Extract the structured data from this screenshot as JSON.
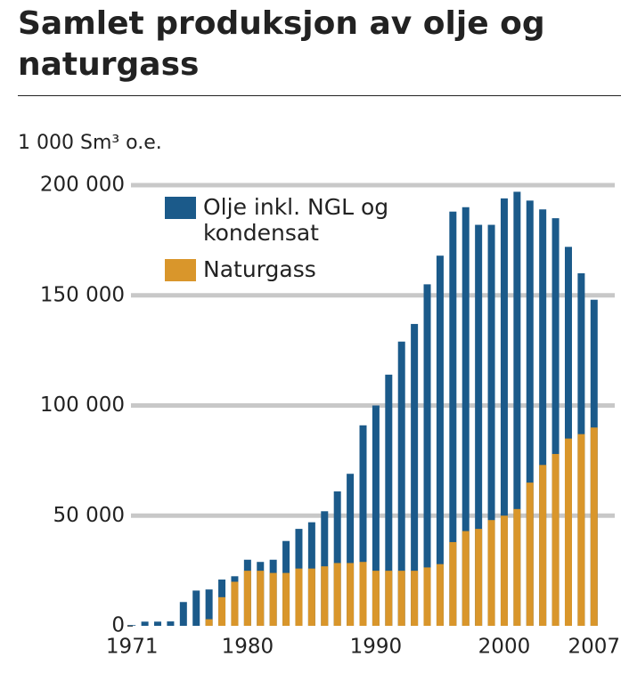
{
  "chart_data": {
    "type": "bar",
    "title": "Samlet produksjon av olje og naturgass",
    "y_axis_label": "1 000 Sm³ o.e.",
    "x": [
      1971,
      1972,
      1973,
      1974,
      1975,
      1976,
      1977,
      1978,
      1979,
      1980,
      1981,
      1982,
      1983,
      1984,
      1985,
      1986,
      1987,
      1988,
      1989,
      1990,
      1991,
      1992,
      1993,
      1994,
      1995,
      1996,
      1997,
      1998,
      1999,
      2000,
      2001,
      2002,
      2003,
      2004,
      2005,
      2006,
      2007
    ],
    "series": [
      {
        "name": "Olje inkl. NGL og kondensat",
        "color": "#1b5a8a",
        "values": [
          300,
          1900,
          1900,
          2000,
          10800,
          16000,
          16500,
          21000,
          22500,
          30000,
          29000,
          30000,
          38500,
          44000,
          47000,
          52000,
          61000,
          69000,
          91000,
          100000,
          114000,
          129000,
          137000,
          155000,
          168000,
          188000,
          190000,
          182000,
          182000,
          194000,
          197000,
          193000,
          189000,
          185000,
          172000,
          160000,
          148000
        ]
      },
      {
        "name": "Naturgass",
        "color": "#d9962b",
        "values": [
          0,
          0,
          0,
          0,
          0,
          0,
          3000,
          13000,
          20000,
          25000,
          25000,
          24000,
          24000,
          26000,
          26000,
          27000,
          28500,
          28500,
          29000,
          25000,
          25000,
          25000,
          25000,
          26500,
          28000,
          38000,
          43000,
          44000,
          48000,
          50000,
          53000,
          65000,
          73000,
          78000,
          85000,
          87000,
          90000
        ]
      }
    ],
    "xlim": [
      1970.5,
      2007.5
    ],
    "xticks": [
      1971,
      1980,
      1990,
      2000,
      2007
    ],
    "ylim": [
      0,
      200000
    ],
    "yticks": [
      0,
      {
        "value": 50000,
        "label": "50 000"
      },
      {
        "value": 100000,
        "label": "100 000"
      },
      {
        "value": 150000,
        "label": "150 000"
      },
      {
        "value": 200000,
        "label": "200 000"
      }
    ],
    "grid": true
  }
}
